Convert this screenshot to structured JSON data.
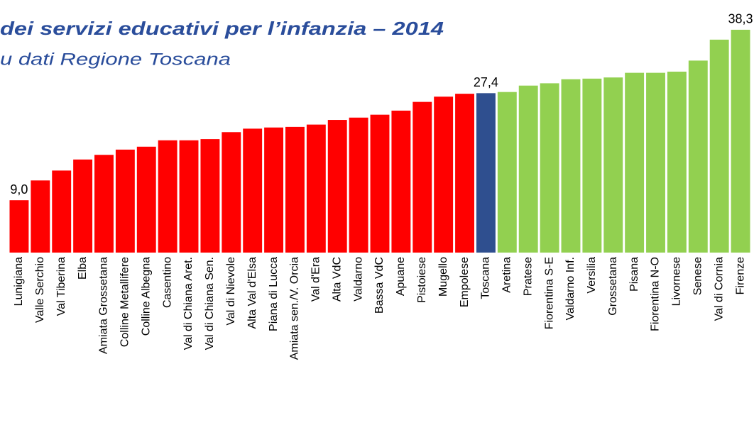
{
  "chart_data": {
    "type": "bar",
    "title": "dei servizi educativi per l’infanzia – 2014",
    "subtitle": "u dati Regione Toscana",
    "categories": [
      "Lunigiana",
      "Valle Serchio",
      "Val Tiberina",
      "Elba",
      "Amiata Grossetana",
      "Colline Metallifere",
      "Colline Albegna",
      "Casentino",
      "Val di Chiana Aret.",
      "Val di Chiana Sen.",
      "Val di Nievole",
      "Alta Val d'Elsa",
      "Piana di Lucca",
      "Amiata sen./V. Orcia",
      "Val d'Era",
      "Alta VdC",
      "Valdarno",
      "Bassa VdC",
      "Apuane",
      "Pistoiese",
      "Mugello",
      "Empolese",
      "Toscana",
      "Aretina",
      "Pratese",
      "Fiorentina S-E",
      "Valdarno Inf.",
      "Versilia",
      "Grossetana",
      "Pisana",
      "Fiorentina N-O",
      "Livornese",
      "Senese",
      "Val di Cornia",
      "Firenze"
    ],
    "values": [
      9.0,
      12.4,
      14.1,
      16.0,
      16.8,
      17.7,
      18.2,
      19.3,
      19.3,
      19.5,
      20.7,
      21.3,
      21.5,
      21.6,
      22.0,
      22.8,
      23.2,
      23.7,
      24.4,
      25.9,
      26.8,
      27.3,
      27.4,
      27.6,
      28.7,
      29.1,
      29.8,
      29.9,
      30.1,
      30.9,
      30.9,
      31.1,
      33.0,
      36.6,
      38.3
    ],
    "value_labels": [
      "9,0",
      null,
      null,
      null,
      null,
      null,
      null,
      null,
      null,
      null,
      null,
      null,
      null,
      null,
      null,
      null,
      null,
      null,
      null,
      null,
      null,
      null,
      "27,4",
      null,
      null,
      null,
      null,
      null,
      null,
      null,
      null,
      null,
      null,
      null,
      "38,3"
    ],
    "colors": [
      "#ff0000",
      "#ff0000",
      "#ff0000",
      "#ff0000",
      "#ff0000",
      "#ff0000",
      "#ff0000",
      "#ff0000",
      "#ff0000",
      "#ff0000",
      "#ff0000",
      "#ff0000",
      "#ff0000",
      "#ff0000",
      "#ff0000",
      "#ff0000",
      "#ff0000",
      "#ff0000",
      "#ff0000",
      "#ff0000",
      "#ff0000",
      "#ff0000",
      "#2f4f8f",
      "#92d050",
      "#92d050",
      "#92d050",
      "#92d050",
      "#92d050",
      "#92d050",
      "#92d050",
      "#92d050",
      "#92d050",
      "#92d050",
      "#92d050",
      "#92d050"
    ],
    "ylim": [
      0,
      40
    ]
  }
}
